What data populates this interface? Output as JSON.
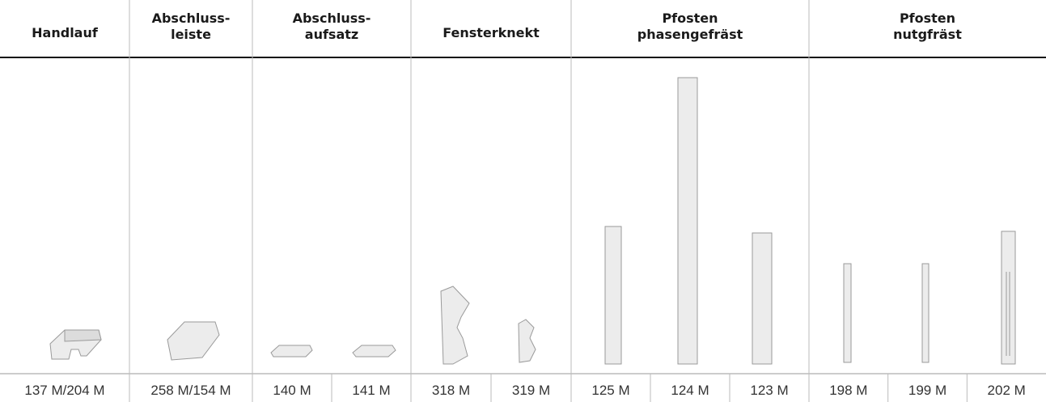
{
  "table": {
    "columns": [
      {
        "header": [
          "Handlauf"
        ],
        "codes": [
          "137 M/204 M"
        ]
      },
      {
        "header": [
          "Abschluss-",
          "leiste"
        ],
        "codes": [
          "258 M/154 M"
        ]
      },
      {
        "header": [
          "Abschluss-",
          "aufsatz"
        ],
        "codes": [
          "140 M",
          "141 M"
        ]
      },
      {
        "header": [
          "Fensterknekt"
        ],
        "codes": [
          "318 M",
          "319 M"
        ]
      },
      {
        "header": [
          "Pfosten",
          "phasengefräst"
        ],
        "codes": [
          "125 M",
          "124 M",
          "123 M"
        ]
      },
      {
        "header": [
          "Pfosten",
          "nutgfräst"
        ],
        "codes": [
          "198 M",
          "199 M",
          "202 M"
        ]
      }
    ]
  }
}
